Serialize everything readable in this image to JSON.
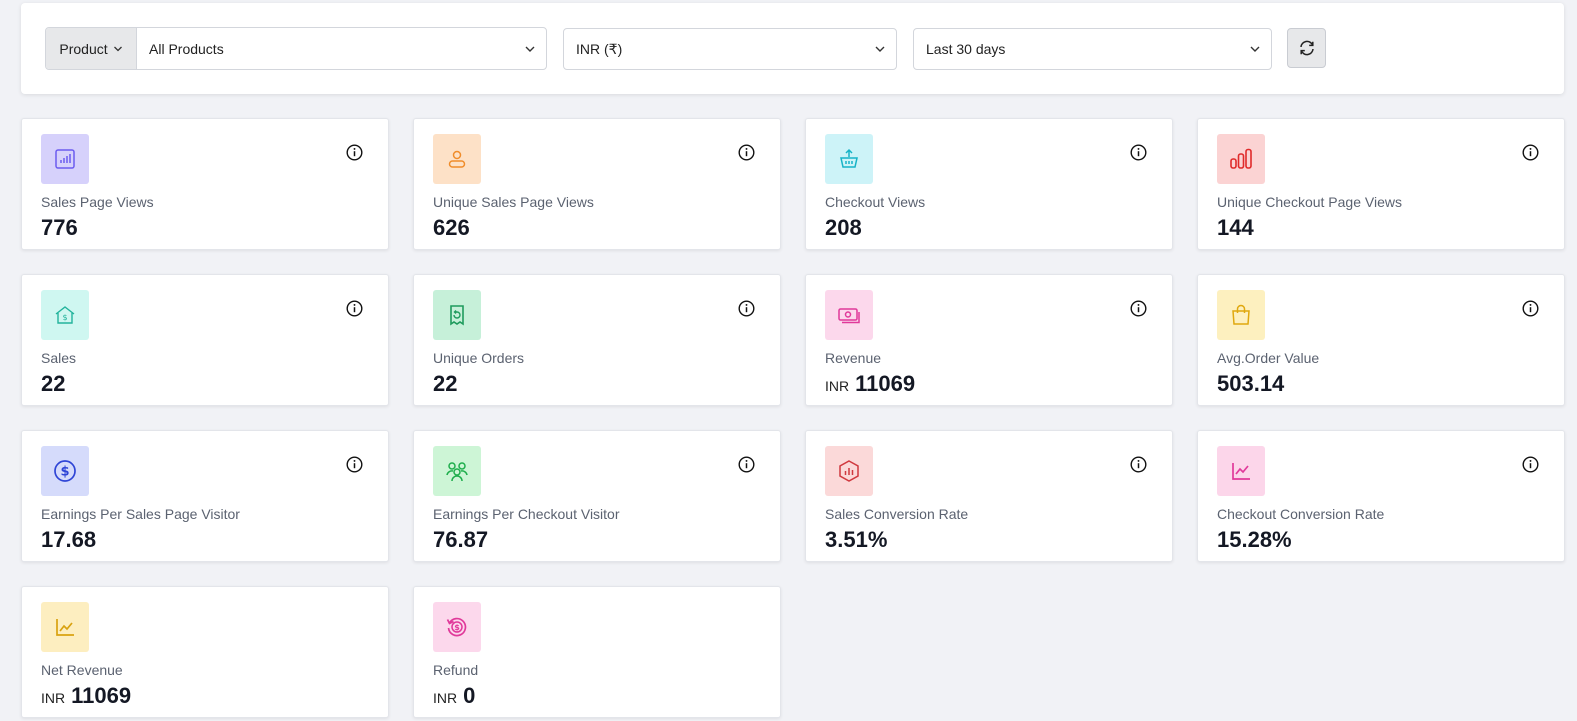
{
  "filters": {
    "product_label": "Product",
    "product_value": "All Products",
    "currency_value": "INR (₹)",
    "date_range_value": "Last 30 days"
  },
  "cards": [
    {
      "label": "Sales Page Views",
      "value": "776",
      "currency": "",
      "icon": "bar-chart-icon",
      "icon_bg": "#d6d1fb",
      "icon_color": "#6b5cf0"
    },
    {
      "label": "Unique Sales Page Views",
      "value": "626",
      "currency": "",
      "icon": "user-icon",
      "icon_bg": "#fde1c7",
      "icon_color": "#f08c2a"
    },
    {
      "label": "Checkout Views",
      "value": "208",
      "currency": "",
      "icon": "basket-icon",
      "icon_bg": "#cdf3f8",
      "icon_color": "#17b3c7"
    },
    {
      "label": "Unique Checkout Page Views",
      "value": "144",
      "currency": "",
      "icon": "bars-icon",
      "icon_bg": "#fbd3d3",
      "icon_color": "#e02b2b"
    },
    {
      "label": "Sales",
      "value": "22",
      "currency": "",
      "icon": "house-dollar-icon",
      "icon_bg": "#cff7f1",
      "icon_color": "#22b39c"
    },
    {
      "label": "Unique Orders",
      "value": "22",
      "currency": "",
      "icon": "receipt-refund-icon",
      "icon_bg": "#c6f0d9",
      "icon_color": "#1f9b5d"
    },
    {
      "label": "Revenue",
      "value": "11069",
      "currency": "INR",
      "icon": "cash-icon",
      "icon_bg": "#fcd8ec",
      "icon_color": "#e0399a"
    },
    {
      "label": "Avg.Order Value",
      "value": "503.14",
      "currency": "",
      "icon": "shopping-bag-icon",
      "icon_bg": "#fdf0bf",
      "icon_color": "#e0a80f"
    },
    {
      "label": "Earnings Per Sales Page Visitor",
      "value": "17.68",
      "currency": "",
      "icon": "dollar-circle-icon",
      "icon_bg": "#d5dbfb",
      "icon_color": "#2f45d6"
    },
    {
      "label": "Earnings Per Checkout Visitor",
      "value": "76.87",
      "currency": "",
      "icon": "users-icon",
      "icon_bg": "#cdf5d6",
      "icon_color": "#1eae4c"
    },
    {
      "label": "Sales Conversion Rate",
      "value": "3.51%",
      "currency": "",
      "icon": "hexagon-chart-icon",
      "icon_bg": "#fbd9d9",
      "icon_color": "#d0393f"
    },
    {
      "label": "Checkout Conversion Rate",
      "value": "15.28%",
      "currency": "",
      "icon": "line-chart-icon",
      "icon_bg": "#fcd6ea",
      "icon_color": "#e13a9b"
    },
    {
      "label": "Net Revenue",
      "value": "11069",
      "currency": "INR",
      "icon": "trend-chart-icon",
      "icon_bg": "#fdeec0",
      "icon_color": "#d9a210"
    },
    {
      "label": "Refund",
      "value": "0",
      "currency": "INR",
      "icon": "refund-dollar-icon",
      "icon_bg": "#fcd8ec",
      "icon_color": "#e0399a"
    }
  ]
}
